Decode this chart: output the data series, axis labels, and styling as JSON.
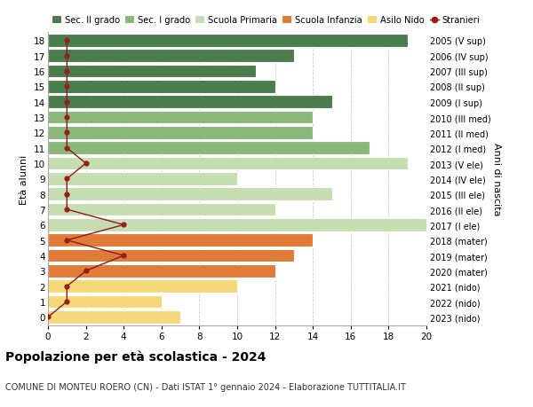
{
  "ages": [
    18,
    17,
    16,
    15,
    14,
    13,
    12,
    11,
    10,
    9,
    8,
    7,
    6,
    5,
    4,
    3,
    2,
    1,
    0
  ],
  "right_labels": [
    "2005 (V sup)",
    "2006 (IV sup)",
    "2007 (III sup)",
    "2008 (II sup)",
    "2009 (I sup)",
    "2010 (III med)",
    "2011 (II med)",
    "2012 (I med)",
    "2013 (V ele)",
    "2014 (IV ele)",
    "2015 (III ele)",
    "2016 (II ele)",
    "2017 (I ele)",
    "2018 (mater)",
    "2019 (mater)",
    "2020 (mater)",
    "2021 (nido)",
    "2022 (nido)",
    "2023 (nido)"
  ],
  "bar_values": [
    19,
    13,
    11,
    12,
    15,
    14,
    14,
    17,
    19,
    10,
    15,
    12,
    20,
    14,
    13,
    12,
    10,
    6,
    7
  ],
  "bar_colors": [
    "#4a7c4e",
    "#4a7c4e",
    "#4a7c4e",
    "#4a7c4e",
    "#4a7c4e",
    "#8ab87a",
    "#8ab87a",
    "#8ab87a",
    "#c5ddb0",
    "#c5ddb0",
    "#c5ddb0",
    "#c5ddb0",
    "#c5ddb0",
    "#e07b39",
    "#e07b39",
    "#e07b39",
    "#f5d87a",
    "#f5d87a",
    "#f5d87a"
  ],
  "stranieri_values": [
    1,
    1,
    1,
    1,
    1,
    1,
    1,
    1,
    2,
    1,
    1,
    1,
    4,
    1,
    4,
    2,
    1,
    1,
    0
  ],
  "legend_labels": [
    "Sec. II grado",
    "Sec. I grado",
    "Scuola Primaria",
    "Scuola Infanzia",
    "Asilo Nido",
    "Stranieri"
  ],
  "legend_colors": [
    "#4a7c4e",
    "#8ab87a",
    "#c5ddb0",
    "#e07b39",
    "#f5d87a",
    "#9b1c1c"
  ],
  "ylabel_left": "Età alunni",
  "right_axis_label": "Anni di nascita",
  "title": "Popolazione per età scolastica - 2024",
  "subtitle": "COMUNE DI MONTEU ROERO (CN) - Dati ISTAT 1° gennaio 2024 - Elaborazione TUTTITALIA.IT",
  "xlim": [
    0,
    20
  ],
  "xticks": [
    0,
    2,
    4,
    6,
    8,
    10,
    12,
    14,
    16,
    18,
    20
  ],
  "background_color": "#ffffff",
  "grid_color": "#cccccc",
  "bar_edge_color": "#ffffff",
  "stranieri_line_color": "#8b1a1a",
  "stranieri_dot_color": "#9b1c1c"
}
